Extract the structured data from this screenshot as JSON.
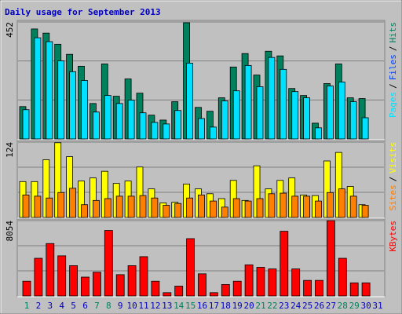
{
  "title": "Daily usage for September 2013",
  "separator": "/",
  "chart_data": [
    {
      "type": "bar",
      "ylim": [
        0,
        452
      ],
      "yticks": [
        452
      ],
      "series": [
        {
          "name": "Hits",
          "color": "#00805c",
          "values": [
            125,
            425,
            409,
            366,
            327,
            281,
            137,
            290,
            165,
            232,
            177,
            92,
            73,
            144,
            449,
            122,
            107,
            159,
            278,
            330,
            247,
            339,
            321,
            195,
            168,
            61,
            214,
            290,
            159,
            156,
            0
          ]
        },
        {
          "name": "Files",
          "color": "#0040ff",
          "values": [
            null,
            null,
            null,
            null,
            null,
            null,
            null,
            null,
            null,
            null,
            null,
            null,
            null,
            null,
            null,
            null,
            null,
            null,
            null,
            null,
            null,
            null,
            null,
            null,
            null,
            null,
            null,
            null,
            null,
            null,
            null
          ]
        },
        {
          "name": "Pages",
          "color": "#00e0ff",
          "values": [
            113,
            391,
            376,
            302,
            260,
            226,
            104,
            168,
            137,
            150,
            101,
            64,
            58,
            110,
            293,
            79,
            46,
            147,
            186,
            284,
            202,
            315,
            269,
            183,
            159,
            43,
            205,
            220,
            144,
            82,
            0
          ]
        }
      ]
    },
    {
      "type": "bar",
      "ylim": [
        0,
        124
      ],
      "yticks": [
        124
      ],
      "series": [
        {
          "name": "Visits",
          "color": "#ffff00",
          "values": [
            59,
            59,
            95,
            123,
            100,
            60,
            65,
            76,
            56,
            60,
            83,
            47,
            24,
            25,
            55,
            47,
            39,
            31,
            61,
            28,
            85,
            47,
            61,
            65,
            37,
            36,
            93,
            107,
            51,
            21,
            0
          ]
        },
        {
          "name": "Sites",
          "color": "#ff8000",
          "values": [
            37,
            35,
            32,
            41,
            48,
            21,
            28,
            31,
            35,
            35,
            36,
            32,
            20,
            23,
            32,
            37,
            27,
            17,
            31,
            27,
            31,
            39,
            40,
            35,
            35,
            27,
            41,
            47,
            35,
            20,
            0
          ]
        }
      ]
    },
    {
      "type": "bar",
      "ylim": [
        0,
        8054
      ],
      "yticks": [
        8054
      ],
      "categories": [
        "1",
        "2",
        "3",
        "4",
        "5",
        "6",
        "7",
        "8",
        "9",
        "10",
        "11",
        "12",
        "13",
        "14",
        "15",
        "16",
        "17",
        "18",
        "19",
        "20",
        "21",
        "22",
        "23",
        "24",
        "25",
        "26",
        "27",
        "28",
        "29",
        "30",
        "31"
      ],
      "category_colors": [
        "#00805c",
        "#0000c0",
        "#0000c0",
        "#0000c0",
        "#0000c0",
        "#0000c0",
        "#00805c",
        "#00805c",
        "#0000c0",
        "#0000c0",
        "#0000c0",
        "#0000c0",
        "#0000c0",
        "#00805c",
        "#00805c",
        "#0000c0",
        "#0000c0",
        "#0000c0",
        "#0000c0",
        "#0000c0",
        "#00805c",
        "#00805c",
        "#0000c0",
        "#0000c0",
        "#0000c0",
        "#0000c0",
        "#0000c0",
        "#00805c",
        "#00805c",
        "#0000c0",
        "#0000c0"
      ],
      "series": [
        {
          "name": "KBytes",
          "color": "#ff0000",
          "values": [
            1575,
            4025,
            5600,
            4288,
            3238,
            2013,
            2538,
            7000,
            2275,
            3238,
            4200,
            1575,
            350,
            1050,
            6125,
            2363,
            350,
            1225,
            1575,
            3325,
            3063,
            2888,
            6913,
            2888,
            1663,
            1663,
            8054,
            4025,
            1400,
            1400,
            0
          ]
        }
      ]
    }
  ]
}
